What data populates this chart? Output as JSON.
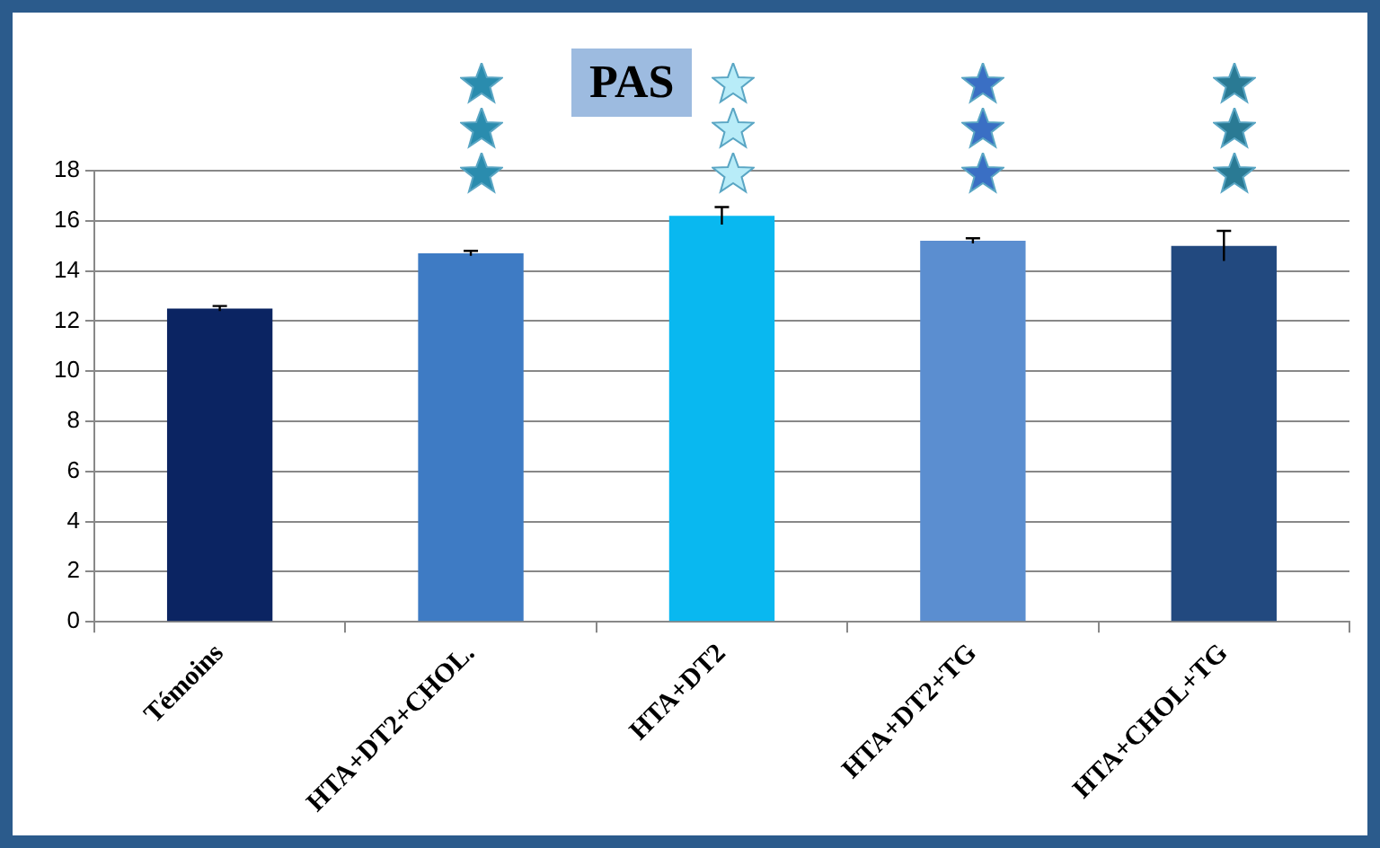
{
  "chart_data": {
    "type": "bar",
    "title": "PAS",
    "categories": [
      "Témoins",
      "HTA+DT2+CHOL.",
      "HTA+DT2",
      "HTA+DT2+TG",
      "HTA+CHOL+TG"
    ],
    "values": [
      12.5,
      14.7,
      16.2,
      15.2,
      15.0
    ],
    "colors": [
      "#0b2462",
      "#3e7bc4",
      "#09b8f0",
      "#5b8ed0",
      "#22497f"
    ],
    "errors": [
      0.1,
      0.1,
      0.35,
      0.1,
      0.6
    ],
    "ylim": [
      0,
      18
    ],
    "yticks": [
      0,
      2,
      4,
      6,
      8,
      10,
      12,
      14,
      16,
      18
    ],
    "grid": "y"
  }
}
